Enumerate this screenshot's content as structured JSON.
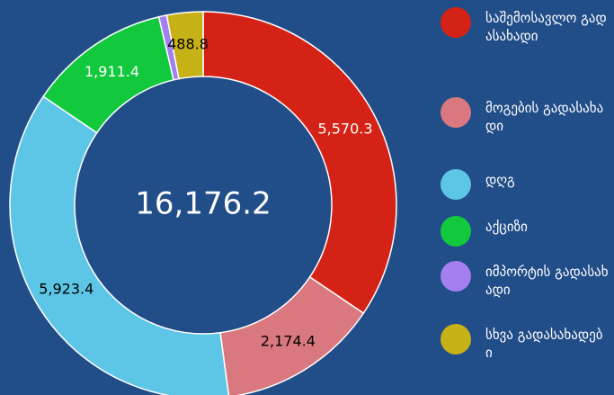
{
  "chart_data": {
    "type": "donut",
    "categories": [
      "საშემოსავლო გადასახადი",
      "მოგების გადასახადი",
      "დღგ",
      "აქციზი",
      "იმპორტის გადასახადი",
      "სხვა გადასახადები"
    ],
    "values": [
      5570.3,
      2174.4,
      5923.4,
      1911.4,
      107.9,
      488.8
    ],
    "value_labels": [
      "5,570.3",
      "2,174.4",
      "5,923.4",
      "1,911.4",
      null,
      "488.8"
    ],
    "colors": [
      "#d42316",
      "#d9787f",
      "#5dc5e6",
      "#12c93e",
      "#a47ff0",
      "#c6b116"
    ],
    "label_colors": [
      "#ffffff",
      "#000000",
      "#000000",
      "#ffffff",
      null,
      "#000000"
    ],
    "center_label": "16,176.2",
    "legend": "right"
  }
}
